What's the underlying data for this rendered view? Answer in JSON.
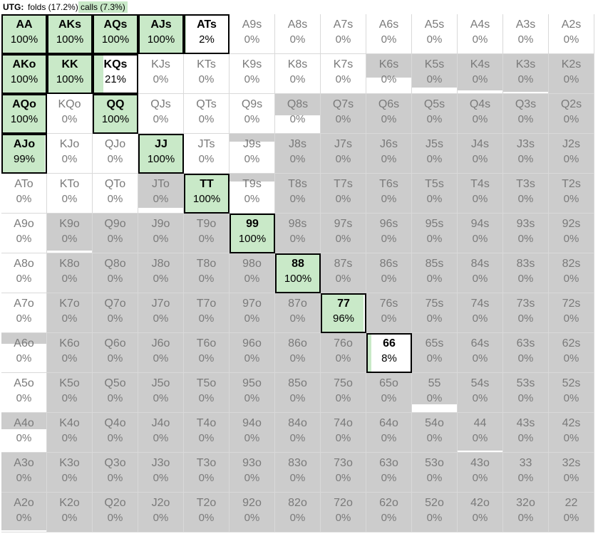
{
  "header": {
    "position": "UTG:",
    "folds": "folds (17.2%)",
    "calls": "calls (7.3%)"
  },
  "colors": {
    "call": "#c9e9c8",
    "fold": "#cccccc",
    "none": "#ffffff"
  },
  "grid": [
    [
      {
        "h": "AA",
        "p": "100%",
        "a": true,
        "c": 100,
        "f": 0
      },
      {
        "h": "AKs",
        "p": "100%",
        "a": true,
        "c": 100,
        "f": 0
      },
      {
        "h": "AQs",
        "p": "100%",
        "a": true,
        "c": 100,
        "f": 0
      },
      {
        "h": "AJs",
        "p": "100%",
        "a": true,
        "c": 100,
        "f": 0
      },
      {
        "h": "ATs",
        "p": "2%",
        "a": true,
        "c": 2,
        "f": 0
      },
      {
        "h": "A9s",
        "p": "0%",
        "a": false,
        "c": 0,
        "f": 0
      },
      {
        "h": "A8s",
        "p": "0%",
        "a": false,
        "c": 0,
        "f": 0
      },
      {
        "h": "A7s",
        "p": "0%",
        "a": false,
        "c": 0,
        "f": 0
      },
      {
        "h": "A6s",
        "p": "0%",
        "a": false,
        "c": 0,
        "f": 0
      },
      {
        "h": "A5s",
        "p": "0%",
        "a": false,
        "c": 0,
        "f": 0
      },
      {
        "h": "A4s",
        "p": "0%",
        "a": false,
        "c": 0,
        "f": 0
      },
      {
        "h": "A3s",
        "p": "0%",
        "a": false,
        "c": 0,
        "f": 0
      },
      {
        "h": "A2s",
        "p": "0%",
        "a": false,
        "c": 0,
        "f": 0
      }
    ],
    [
      {
        "h": "AKo",
        "p": "100%",
        "a": true,
        "c": 100,
        "f": 0
      },
      {
        "h": "KK",
        "p": "100%",
        "a": true,
        "c": 100,
        "f": 0
      },
      {
        "h": "KQs",
        "p": "21%",
        "a": true,
        "c": 21,
        "f": 0
      },
      {
        "h": "KJs",
        "p": "0%",
        "a": false,
        "c": 0,
        "f": 0
      },
      {
        "h": "KTs",
        "p": "0%",
        "a": false,
        "c": 0,
        "f": 0
      },
      {
        "h": "K9s",
        "p": "0%",
        "a": false,
        "c": 0,
        "f": 0
      },
      {
        "h": "K8s",
        "p": "0%",
        "a": false,
        "c": 0,
        "f": 0
      },
      {
        "h": "K7s",
        "p": "0%",
        "a": false,
        "c": 0,
        "f": 0
      },
      {
        "h": "K6s",
        "p": "0%",
        "a": false,
        "c": 0,
        "f": 60
      },
      {
        "h": "K5s",
        "p": "0%",
        "a": false,
        "c": 0,
        "f": 85
      },
      {
        "h": "K4s",
        "p": "0%",
        "a": false,
        "c": 0,
        "f": 92
      },
      {
        "h": "K3s",
        "p": "0%",
        "a": false,
        "c": 0,
        "f": 96
      },
      {
        "h": "K2s",
        "p": "0%",
        "a": false,
        "c": 0,
        "f": 100
      }
    ],
    [
      {
        "h": "AQo",
        "p": "100%",
        "a": true,
        "c": 100,
        "f": 0
      },
      {
        "h": "KQo",
        "p": "0%",
        "a": false,
        "c": 0,
        "f": 0
      },
      {
        "h": "QQ",
        "p": "100%",
        "a": true,
        "c": 100,
        "f": 0
      },
      {
        "h": "QJs",
        "p": "0%",
        "a": false,
        "c": 0,
        "f": 0
      },
      {
        "h": "QTs",
        "p": "0%",
        "a": false,
        "c": 0,
        "f": 0
      },
      {
        "h": "Q9s",
        "p": "0%",
        "a": false,
        "c": 0,
        "f": 0
      },
      {
        "h": "Q8s",
        "p": "0%",
        "a": false,
        "c": 0,
        "f": 55
      },
      {
        "h": "Q7s",
        "p": "0%",
        "a": false,
        "c": 0,
        "f": 100
      },
      {
        "h": "Q6s",
        "p": "0%",
        "a": false,
        "c": 0,
        "f": 100
      },
      {
        "h": "Q5s",
        "p": "0%",
        "a": false,
        "c": 0,
        "f": 100
      },
      {
        "h": "Q4s",
        "p": "0%",
        "a": false,
        "c": 0,
        "f": 100
      },
      {
        "h": "Q3s",
        "p": "0%",
        "a": false,
        "c": 0,
        "f": 100
      },
      {
        "h": "Q2s",
        "p": "0%",
        "a": false,
        "c": 0,
        "f": 100
      }
    ],
    [
      {
        "h": "AJo",
        "p": "99%",
        "a": true,
        "c": 99,
        "f": 0
      },
      {
        "h": "KJo",
        "p": "0%",
        "a": false,
        "c": 0,
        "f": 0
      },
      {
        "h": "QJo",
        "p": "0%",
        "a": false,
        "c": 0,
        "f": 0
      },
      {
        "h": "JJ",
        "p": "100%",
        "a": true,
        "c": 100,
        "f": 0
      },
      {
        "h": "JTs",
        "p": "0%",
        "a": false,
        "c": 0,
        "f": 0
      },
      {
        "h": "J9s",
        "p": "0%",
        "a": false,
        "c": 0,
        "f": 20
      },
      {
        "h": "J8s",
        "p": "0%",
        "a": false,
        "c": 0,
        "f": 100
      },
      {
        "h": "J7s",
        "p": "0%",
        "a": false,
        "c": 0,
        "f": 100
      },
      {
        "h": "J6s",
        "p": "0%",
        "a": false,
        "c": 0,
        "f": 100
      },
      {
        "h": "J5s",
        "p": "0%",
        "a": false,
        "c": 0,
        "f": 100
      },
      {
        "h": "J4s",
        "p": "0%",
        "a": false,
        "c": 0,
        "f": 100
      },
      {
        "h": "J3s",
        "p": "0%",
        "a": false,
        "c": 0,
        "f": 100
      },
      {
        "h": "J2s",
        "p": "0%",
        "a": false,
        "c": 0,
        "f": 100
      }
    ],
    [
      {
        "h": "ATo",
        "p": "0%",
        "a": false,
        "c": 0,
        "f": 0
      },
      {
        "h": "KTo",
        "p": "0%",
        "a": false,
        "c": 0,
        "f": 0
      },
      {
        "h": "QTo",
        "p": "0%",
        "a": false,
        "c": 0,
        "f": 0
      },
      {
        "h": "JTo",
        "p": "0%",
        "a": false,
        "c": 0,
        "f": 87
      },
      {
        "h": "TT",
        "p": "100%",
        "a": true,
        "c": 100,
        "f": 0
      },
      {
        "h": "T9s",
        "p": "0%",
        "a": false,
        "c": 0,
        "f": 20
      },
      {
        "h": "T8s",
        "p": "0%",
        "a": false,
        "c": 0,
        "f": 100
      },
      {
        "h": "T7s",
        "p": "0%",
        "a": false,
        "c": 0,
        "f": 100
      },
      {
        "h": "T6s",
        "p": "0%",
        "a": false,
        "c": 0,
        "f": 100
      },
      {
        "h": "T5s",
        "p": "0%",
        "a": false,
        "c": 0,
        "f": 100
      },
      {
        "h": "T4s",
        "p": "0%",
        "a": false,
        "c": 0,
        "f": 100
      },
      {
        "h": "T3s",
        "p": "0%",
        "a": false,
        "c": 0,
        "f": 100
      },
      {
        "h": "T2s",
        "p": "0%",
        "a": false,
        "c": 0,
        "f": 100
      }
    ],
    [
      {
        "h": "A9o",
        "p": "0%",
        "a": false,
        "c": 0,
        "f": 0
      },
      {
        "h": "K9o",
        "p": "0%",
        "a": false,
        "c": 0,
        "f": 95
      },
      {
        "h": "Q9o",
        "p": "0%",
        "a": false,
        "c": 0,
        "f": 100
      },
      {
        "h": "J9o",
        "p": "0%",
        "a": false,
        "c": 0,
        "f": 100
      },
      {
        "h": "T9o",
        "p": "0%",
        "a": false,
        "c": 0,
        "f": 100
      },
      {
        "h": "99",
        "p": "100%",
        "a": true,
        "c": 100,
        "f": 0
      },
      {
        "h": "98s",
        "p": "0%",
        "a": false,
        "c": 0,
        "f": 100
      },
      {
        "h": "97s",
        "p": "0%",
        "a": false,
        "c": 0,
        "f": 100
      },
      {
        "h": "96s",
        "p": "0%",
        "a": false,
        "c": 0,
        "f": 100
      },
      {
        "h": "95s",
        "p": "0%",
        "a": false,
        "c": 0,
        "f": 100
      },
      {
        "h": "94s",
        "p": "0%",
        "a": false,
        "c": 0,
        "f": 100
      },
      {
        "h": "93s",
        "p": "0%",
        "a": false,
        "c": 0,
        "f": 100
      },
      {
        "h": "92s",
        "p": "0%",
        "a": false,
        "c": 0,
        "f": 100
      }
    ],
    [
      {
        "h": "A8o",
        "p": "0%",
        "a": false,
        "c": 0,
        "f": 0
      },
      {
        "h": "K8o",
        "p": "0%",
        "a": false,
        "c": 0,
        "f": 100
      },
      {
        "h": "Q8o",
        "p": "0%",
        "a": false,
        "c": 0,
        "f": 100
      },
      {
        "h": "J8o",
        "p": "0%",
        "a": false,
        "c": 0,
        "f": 100
      },
      {
        "h": "T8o",
        "p": "0%",
        "a": false,
        "c": 0,
        "f": 100
      },
      {
        "h": "98o",
        "p": "0%",
        "a": false,
        "c": 0,
        "f": 100
      },
      {
        "h": "88",
        "p": "100%",
        "a": true,
        "c": 100,
        "f": 0
      },
      {
        "h": "87s",
        "p": "0%",
        "a": false,
        "c": 0,
        "f": 100
      },
      {
        "h": "86s",
        "p": "0%",
        "a": false,
        "c": 0,
        "f": 100
      },
      {
        "h": "85s",
        "p": "0%",
        "a": false,
        "c": 0,
        "f": 100
      },
      {
        "h": "84s",
        "p": "0%",
        "a": false,
        "c": 0,
        "f": 100
      },
      {
        "h": "83s",
        "p": "0%",
        "a": false,
        "c": 0,
        "f": 100
      },
      {
        "h": "82s",
        "p": "0%",
        "a": false,
        "c": 0,
        "f": 100
      }
    ],
    [
      {
        "h": "A7o",
        "p": "0%",
        "a": false,
        "c": 0,
        "f": 0
      },
      {
        "h": "K7o",
        "p": "0%",
        "a": false,
        "c": 0,
        "f": 100
      },
      {
        "h": "Q7o",
        "p": "0%",
        "a": false,
        "c": 0,
        "f": 100
      },
      {
        "h": "J7o",
        "p": "0%",
        "a": false,
        "c": 0,
        "f": 100
      },
      {
        "h": "T7o",
        "p": "0%",
        "a": false,
        "c": 0,
        "f": 100
      },
      {
        "h": "97o",
        "p": "0%",
        "a": false,
        "c": 0,
        "f": 100
      },
      {
        "h": "87o",
        "p": "0%",
        "a": false,
        "c": 0,
        "f": 100
      },
      {
        "h": "77",
        "p": "96%",
        "a": true,
        "c": 96,
        "f": 0
      },
      {
        "h": "76s",
        "p": "0%",
        "a": false,
        "c": 0,
        "f": 100
      },
      {
        "h": "75s",
        "p": "0%",
        "a": false,
        "c": 0,
        "f": 100
      },
      {
        "h": "74s",
        "p": "0%",
        "a": false,
        "c": 0,
        "f": 100
      },
      {
        "h": "73s",
        "p": "0%",
        "a": false,
        "c": 0,
        "f": 100
      },
      {
        "h": "72s",
        "p": "0%",
        "a": false,
        "c": 0,
        "f": 100
      }
    ],
    [
      {
        "h": "A6o",
        "p": "0%",
        "a": false,
        "c": 0,
        "f": 28
      },
      {
        "h": "K6o",
        "p": "0%",
        "a": false,
        "c": 0,
        "f": 100
      },
      {
        "h": "Q6o",
        "p": "0%",
        "a": false,
        "c": 0,
        "f": 100
      },
      {
        "h": "J6o",
        "p": "0%",
        "a": false,
        "c": 0,
        "f": 100
      },
      {
        "h": "T6o",
        "p": "0%",
        "a": false,
        "c": 0,
        "f": 100
      },
      {
        "h": "96o",
        "p": "0%",
        "a": false,
        "c": 0,
        "f": 100
      },
      {
        "h": "86o",
        "p": "0%",
        "a": false,
        "c": 0,
        "f": 100
      },
      {
        "h": "76o",
        "p": "0%",
        "a": false,
        "c": 0,
        "f": 100
      },
      {
        "h": "66",
        "p": "8%",
        "a": true,
        "c": 8,
        "f": 0
      },
      {
        "h": "65s",
        "p": "0%",
        "a": false,
        "c": 0,
        "f": 100
      },
      {
        "h": "64s",
        "p": "0%",
        "a": false,
        "c": 0,
        "f": 100
      },
      {
        "h": "63s",
        "p": "0%",
        "a": false,
        "c": 0,
        "f": 100
      },
      {
        "h": "62s",
        "p": "0%",
        "a": false,
        "c": 0,
        "f": 100
      }
    ],
    [
      {
        "h": "A5o",
        "p": "0%",
        "a": false,
        "c": 0,
        "f": 0
      },
      {
        "h": "K5o",
        "p": "0%",
        "a": false,
        "c": 0,
        "f": 100
      },
      {
        "h": "Q5o",
        "p": "0%",
        "a": false,
        "c": 0,
        "f": 100
      },
      {
        "h": "J5o",
        "p": "0%",
        "a": false,
        "c": 0,
        "f": 100
      },
      {
        "h": "T5o",
        "p": "0%",
        "a": false,
        "c": 0,
        "f": 100
      },
      {
        "h": "95o",
        "p": "0%",
        "a": false,
        "c": 0,
        "f": 100
      },
      {
        "h": "85o",
        "p": "0%",
        "a": false,
        "c": 0,
        "f": 100
      },
      {
        "h": "75o",
        "p": "0%",
        "a": false,
        "c": 0,
        "f": 100
      },
      {
        "h": "65o",
        "p": "0%",
        "a": false,
        "c": 0,
        "f": 100
      },
      {
        "h": "55",
        "p": "0%",
        "a": false,
        "c": 0,
        "f": 80
      },
      {
        "h": "54s",
        "p": "0%",
        "a": false,
        "c": 0,
        "f": 100
      },
      {
        "h": "53s",
        "p": "0%",
        "a": false,
        "c": 0,
        "f": 100
      },
      {
        "h": "52s",
        "p": "0%",
        "a": false,
        "c": 0,
        "f": 100
      }
    ],
    [
      {
        "h": "A4o",
        "p": "0%",
        "a": false,
        "c": 0,
        "f": 42
      },
      {
        "h": "K4o",
        "p": "0%",
        "a": false,
        "c": 0,
        "f": 100
      },
      {
        "h": "Q4o",
        "p": "0%",
        "a": false,
        "c": 0,
        "f": 100
      },
      {
        "h": "J4o",
        "p": "0%",
        "a": false,
        "c": 0,
        "f": 100
      },
      {
        "h": "T4o",
        "p": "0%",
        "a": false,
        "c": 0,
        "f": 100
      },
      {
        "h": "94o",
        "p": "0%",
        "a": false,
        "c": 0,
        "f": 100
      },
      {
        "h": "84o",
        "p": "0%",
        "a": false,
        "c": 0,
        "f": 100
      },
      {
        "h": "74o",
        "p": "0%",
        "a": false,
        "c": 0,
        "f": 100
      },
      {
        "h": "64o",
        "p": "0%",
        "a": false,
        "c": 0,
        "f": 100
      },
      {
        "h": "54o",
        "p": "0%",
        "a": false,
        "c": 0,
        "f": 100
      },
      {
        "h": "44",
        "p": "0%",
        "a": false,
        "c": 0,
        "f": 96
      },
      {
        "h": "43s",
        "p": "0%",
        "a": false,
        "c": 0,
        "f": 100
      },
      {
        "h": "42s",
        "p": "0%",
        "a": false,
        "c": 0,
        "f": 100
      }
    ],
    [
      {
        "h": "A3o",
        "p": "0%",
        "a": false,
        "c": 0,
        "f": 100
      },
      {
        "h": "K3o",
        "p": "0%",
        "a": false,
        "c": 0,
        "f": 100
      },
      {
        "h": "Q3o",
        "p": "0%",
        "a": false,
        "c": 0,
        "f": 100
      },
      {
        "h": "J3o",
        "p": "0%",
        "a": false,
        "c": 0,
        "f": 100
      },
      {
        "h": "T3o",
        "p": "0%",
        "a": false,
        "c": 0,
        "f": 100
      },
      {
        "h": "93o",
        "p": "0%",
        "a": false,
        "c": 0,
        "f": 100
      },
      {
        "h": "83o",
        "p": "0%",
        "a": false,
        "c": 0,
        "f": 100
      },
      {
        "h": "73o",
        "p": "0%",
        "a": false,
        "c": 0,
        "f": 100
      },
      {
        "h": "63o",
        "p": "0%",
        "a": false,
        "c": 0,
        "f": 100
      },
      {
        "h": "53o",
        "p": "0%",
        "a": false,
        "c": 0,
        "f": 100
      },
      {
        "h": "43o",
        "p": "0%",
        "a": false,
        "c": 0,
        "f": 100
      },
      {
        "h": "33",
        "p": "0%",
        "a": false,
        "c": 0,
        "f": 100
      },
      {
        "h": "32s",
        "p": "0%",
        "a": false,
        "c": 0,
        "f": 100
      }
    ],
    [
      {
        "h": "A2o",
        "p": "0%",
        "a": false,
        "c": 0,
        "f": 96
      },
      {
        "h": "K2o",
        "p": "0%",
        "a": false,
        "c": 0,
        "f": 100
      },
      {
        "h": "Q2o",
        "p": "0%",
        "a": false,
        "c": 0,
        "f": 100
      },
      {
        "h": "J2o",
        "p": "0%",
        "a": false,
        "c": 0,
        "f": 100
      },
      {
        "h": "T2o",
        "p": "0%",
        "a": false,
        "c": 0,
        "f": 100
      },
      {
        "h": "92o",
        "p": "0%",
        "a": false,
        "c": 0,
        "f": 100
      },
      {
        "h": "82o",
        "p": "0%",
        "a": false,
        "c": 0,
        "f": 100
      },
      {
        "h": "72o",
        "p": "0%",
        "a": false,
        "c": 0,
        "f": 100
      },
      {
        "h": "62o",
        "p": "0%",
        "a": false,
        "c": 0,
        "f": 100
      },
      {
        "h": "52o",
        "p": "0%",
        "a": false,
        "c": 0,
        "f": 100
      },
      {
        "h": "42o",
        "p": "0%",
        "a": false,
        "c": 0,
        "f": 100
      },
      {
        "h": "32o",
        "p": "0%",
        "a": false,
        "c": 0,
        "f": 100
      },
      {
        "h": "22",
        "p": "0%",
        "a": false,
        "c": 0,
        "f": 100
      }
    ]
  ]
}
